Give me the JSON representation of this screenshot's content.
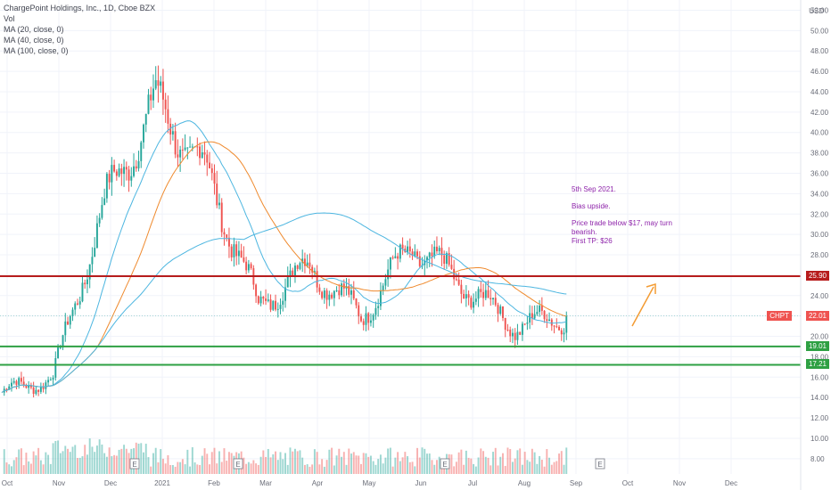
{
  "header": {
    "title": "ChargePoint Holdings, Inc., 1D, Cboe BZX",
    "indicators": [
      "Vol",
      "MA (20, close, 0)",
      "MA (40, close, 0)",
      "MA (100, close, 0)"
    ]
  },
  "currency_label": "USD",
  "price_tag": {
    "symbol": "CHPT",
    "value": "22.01"
  },
  "level_tags": [
    "25.90",
    "19.01",
    "17.21"
  ],
  "annotation": {
    "line1": "5th Sep 2021.",
    "line2": "Bias upside.",
    "line3": "Price trade below $17, may turn bearish.",
    "line4": "First TP: $26"
  },
  "colors": {
    "up": "#26a69a",
    "down": "#ef5350",
    "ma20": "#4db6e0",
    "ma40": "#ef8a2e",
    "ma100": "#4db6e0",
    "resistance": "#b71c1c",
    "support": "#2ea043",
    "arrow": "#f39c34"
  },
  "chart_data": {
    "type": "candlestick",
    "x_labels": [
      "Oct",
      "Nov",
      "Dec",
      "2021",
      "Feb",
      "Mar",
      "Apr",
      "May",
      "Jun",
      "Jul",
      "Aug",
      "Sep",
      "Oct",
      "Nov",
      "Dec"
    ],
    "y_ticks": [
      "52.00",
      "50.00",
      "48.00",
      "46.00",
      "44.00",
      "42.00",
      "40.00",
      "38.00",
      "36.00",
      "34.00",
      "32.00",
      "30.00",
      "28.00",
      "26.00",
      "24.00",
      "22.00",
      "20.00",
      "18.00",
      "16.00",
      "14.00",
      "12.00",
      "10.00",
      "8.00"
    ],
    "ylim": [
      6.5,
      53
    ],
    "levels": [
      {
        "value": 25.9,
        "kind": "resistance"
      },
      {
        "value": 19.01,
        "kind": "support"
      },
      {
        "value": 17.21,
        "kind": "support"
      }
    ],
    "last_price": 22.01,
    "closes_by_month": [
      {
        "month": "Oct",
        "close": 14.5
      },
      {
        "month": "Nov",
        "close": 16.0
      },
      {
        "month": "Dec",
        "close": 33.0
      },
      {
        "month": "2021",
        "close": 43.0
      },
      {
        "month": "Feb",
        "close": 36.0
      },
      {
        "month": "Mar",
        "close": 23.0
      },
      {
        "month": "Apr",
        "close": 27.0
      },
      {
        "month": "May",
        "close": 22.0
      },
      {
        "month": "Jun",
        "close": 29.0
      },
      {
        "month": "Jul",
        "close": 25.0
      },
      {
        "month": "Aug",
        "close": 21.0
      },
      {
        "month": "Sep",
        "close": 22.01
      }
    ],
    "earnings_markers": [
      "Dec",
      "Feb",
      "Jun",
      "Sep"
    ]
  }
}
